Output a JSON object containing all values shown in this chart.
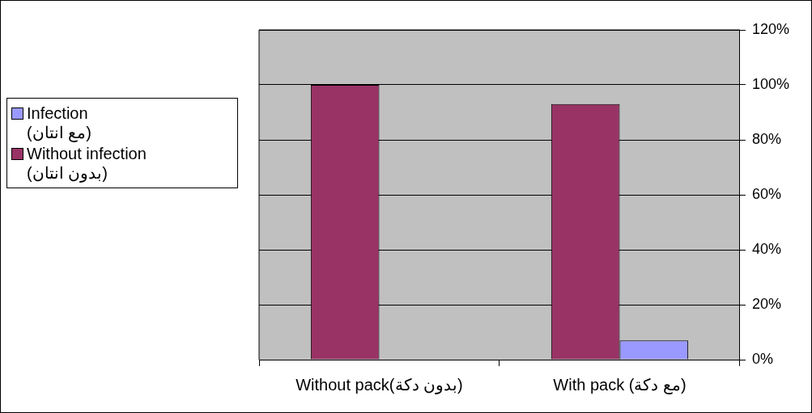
{
  "chart_data": {
    "type": "bar",
    "categories": [
      "Without pack(بدون دكة)",
      "With pack (مع دكة)"
    ],
    "series": [
      {
        "name": "Without infection\n(بدون انتان)",
        "color": "#993366",
        "values": [
          100,
          93
        ]
      },
      {
        "name": "Infection\n(مع انتان)",
        "color": "#9999ff",
        "values": [
          0,
          7
        ]
      }
    ],
    "ylim": [
      0,
      120
    ],
    "yticks": [
      {
        "value": 0,
        "label": "0%"
      },
      {
        "value": 20,
        "label": "20%"
      },
      {
        "value": 40,
        "label": "40%"
      },
      {
        "value": 60,
        "label": "60%"
      },
      {
        "value": 80,
        "label": "80%"
      },
      {
        "value": 100,
        "label": "100%"
      },
      {
        "value": 120,
        "label": "120%"
      }
    ],
    "grid": "y",
    "legend": "left"
  }
}
